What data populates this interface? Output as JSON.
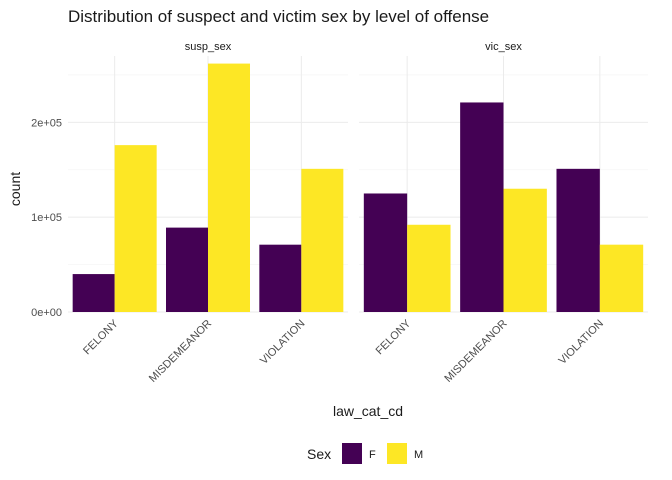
{
  "chart_data": {
    "type": "bar",
    "title": "Distribution of suspect and victim sex by level of offense",
    "xlabel": "law_cat_cd",
    "ylabel": "count",
    "categories": [
      "FELONY",
      "MISDEMEANOR",
      "VIOLATION"
    ],
    "ylim": [
      0,
      270000
    ],
    "yticks": [
      0,
      100000,
      200000
    ],
    "ytick_labels": [
      "0e+00",
      "1e+05",
      "2e+05"
    ],
    "grid": true,
    "facets": [
      {
        "label": "susp_sex",
        "series": [
          {
            "name": "F",
            "values": [
              40000,
              89000,
              71000
            ]
          },
          {
            "name": "M",
            "values": [
              176000,
              262000,
              151000
            ]
          }
        ]
      },
      {
        "label": "vic_sex",
        "series": [
          {
            "name": "F",
            "values": [
              125000,
              221000,
              151000
            ]
          },
          {
            "name": "M",
            "values": [
              92000,
              130000,
              71000
            ]
          }
        ]
      }
    ],
    "legend": {
      "title": "Sex",
      "position": "bottom",
      "entries": [
        {
          "name": "F",
          "color": "#440154"
        },
        {
          "name": "M",
          "color": "#FDE725"
        }
      ]
    }
  }
}
